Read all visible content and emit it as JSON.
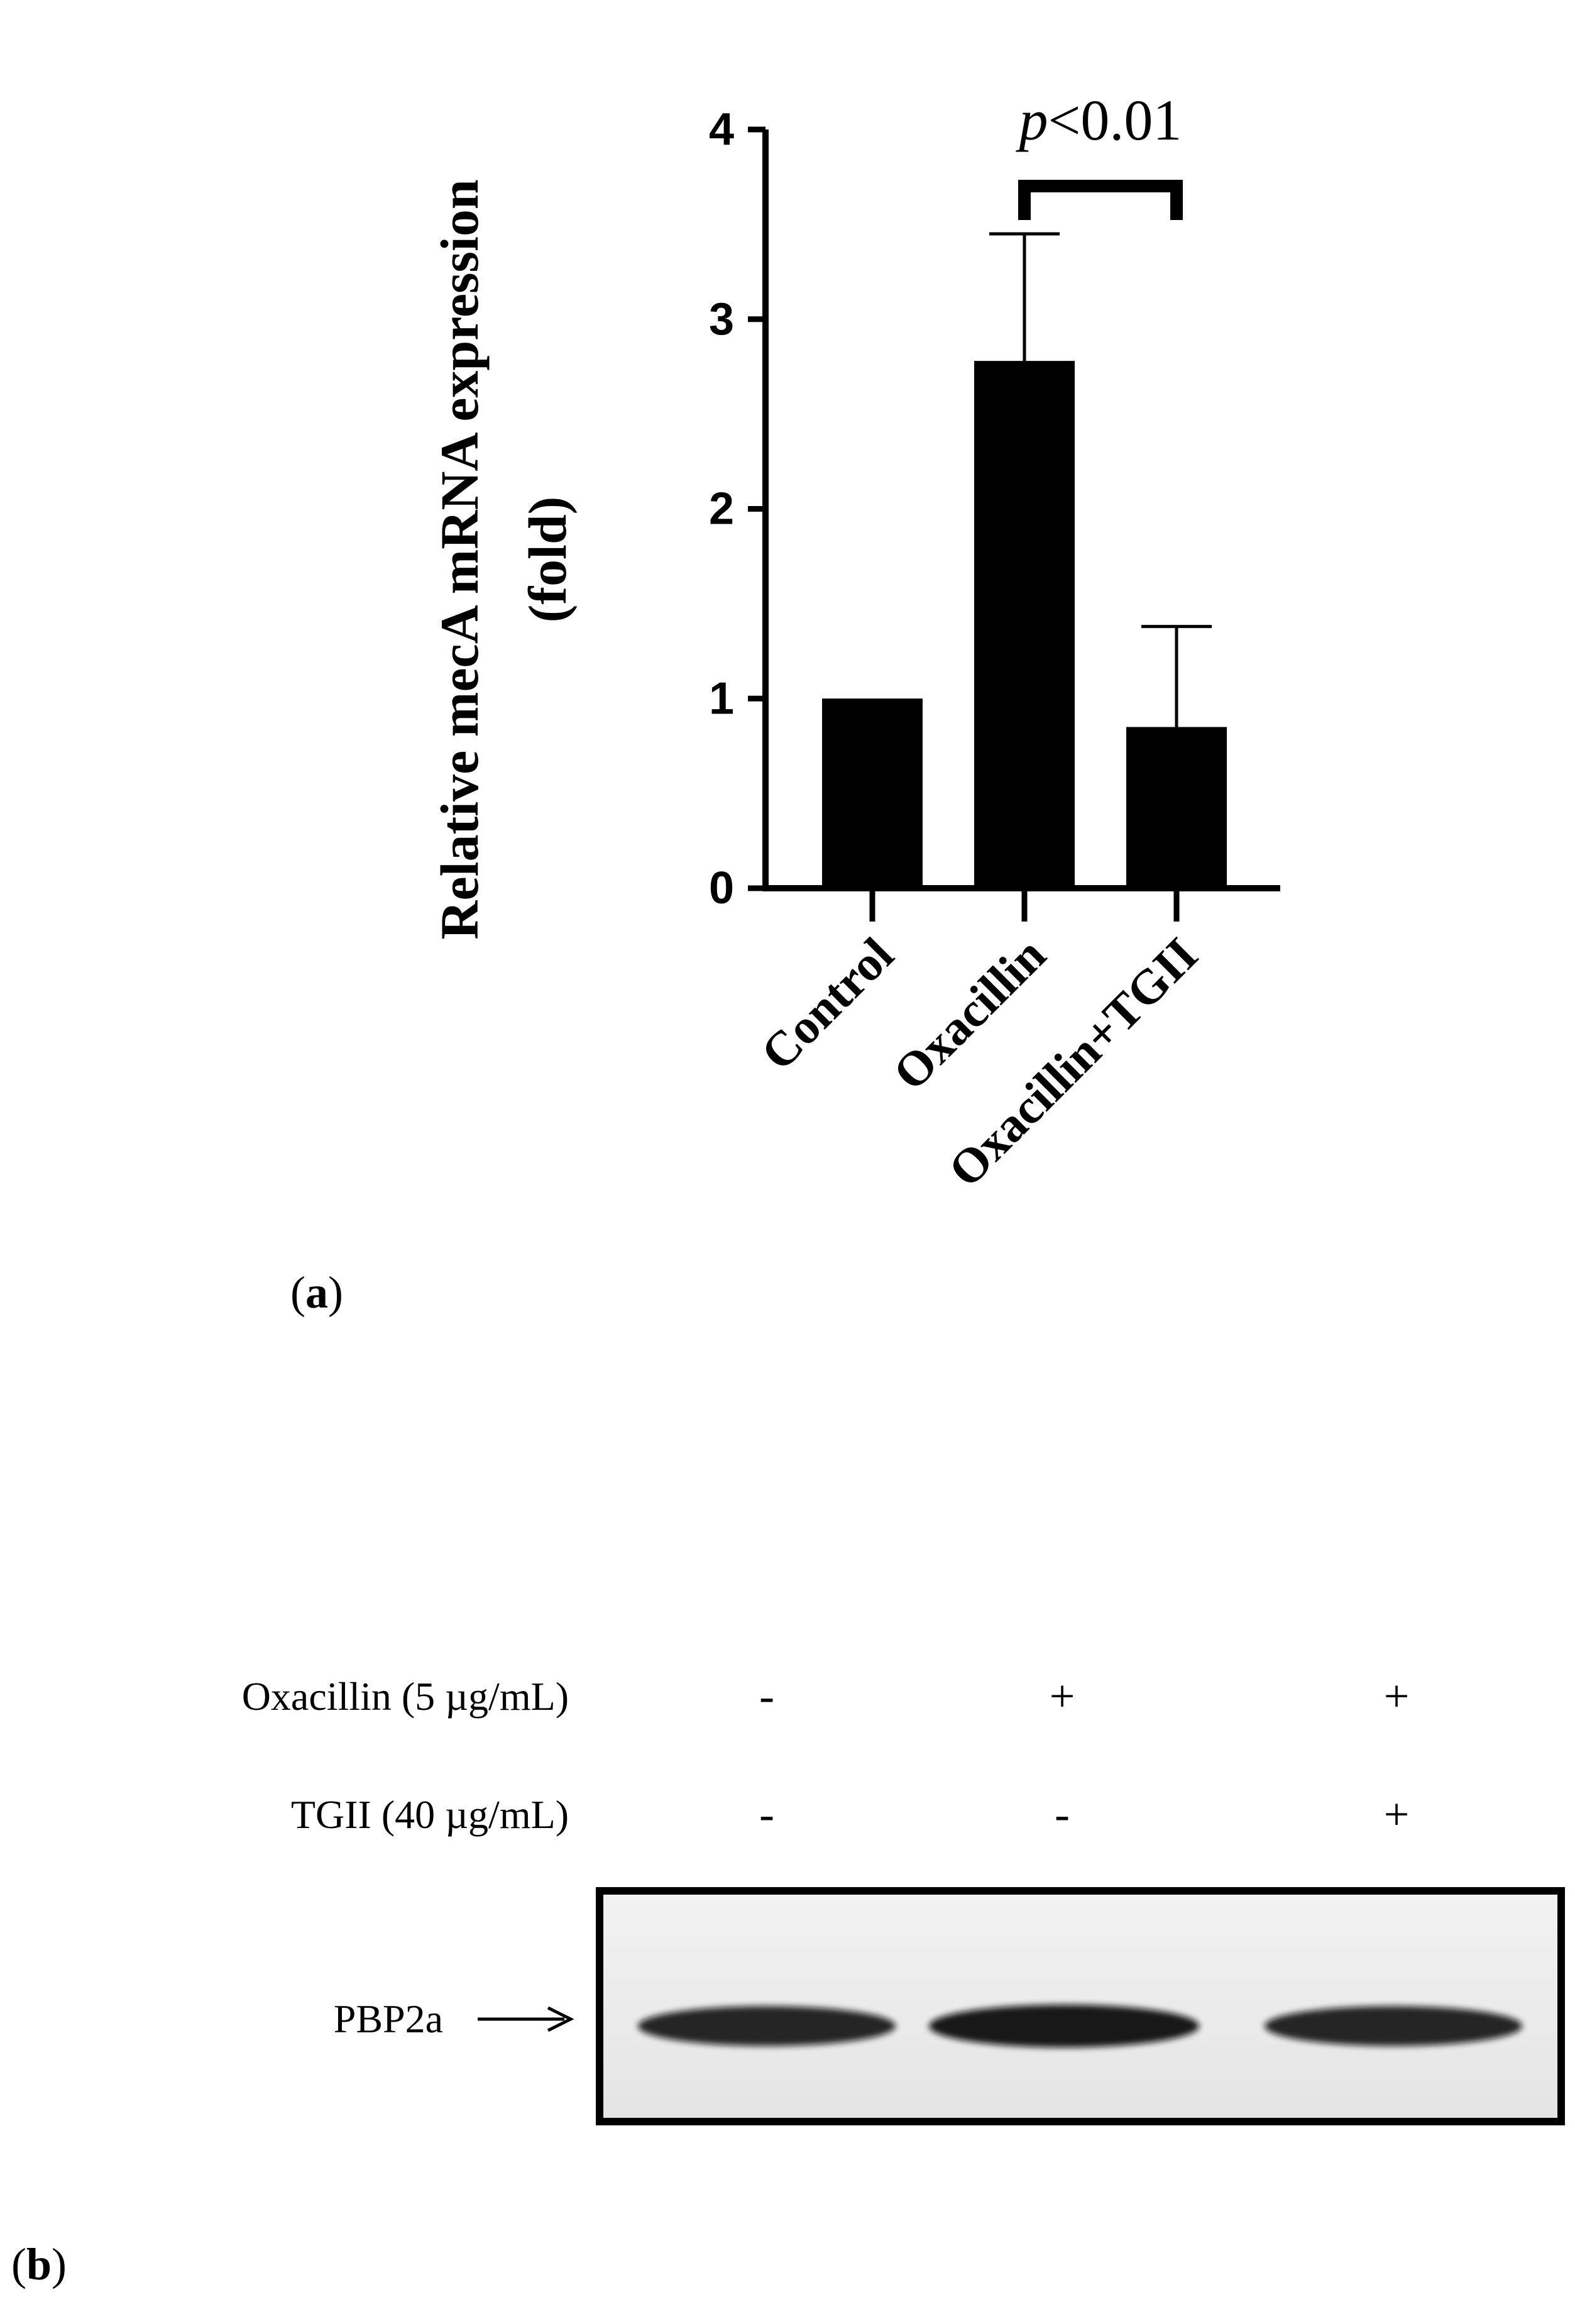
{
  "chart_data": {
    "type": "bar",
    "categories": [
      "Control",
      "Oxacillin",
      "Oxacillin+TGII"
    ],
    "values": [
      1.0,
      2.78,
      0.85
    ],
    "errors": [
      0,
      0.67,
      0.53
    ],
    "ylabel_line1": "Relative mecA mRNA expression",
    "ylabel_line2": "(fold)",
    "ylim": [
      0,
      4
    ],
    "yticks": [
      "0",
      "1",
      "2",
      "3",
      "4"
    ],
    "annotation": {
      "p_symbol": "p",
      "p_text": "<0.01",
      "between": [
        1,
        2
      ]
    },
    "bar_color": "#000000"
  },
  "panel_a": {
    "label_open": "(",
    "label_letter": "a",
    "label_close": ")"
  },
  "panel_b": {
    "label_open": "(",
    "label_letter": "b",
    "label_close": ")",
    "row1_label": "Oxacillin (5 µg/mL)",
    "row2_label": "TGII (40 µg/mL)",
    "row1_marks": [
      "-",
      "+",
      "+"
    ],
    "row2_marks": [
      "-",
      "-",
      "+"
    ],
    "band_label": "PBP2a",
    "band_intensity": [
      0.85,
      1.0,
      0.85
    ]
  }
}
